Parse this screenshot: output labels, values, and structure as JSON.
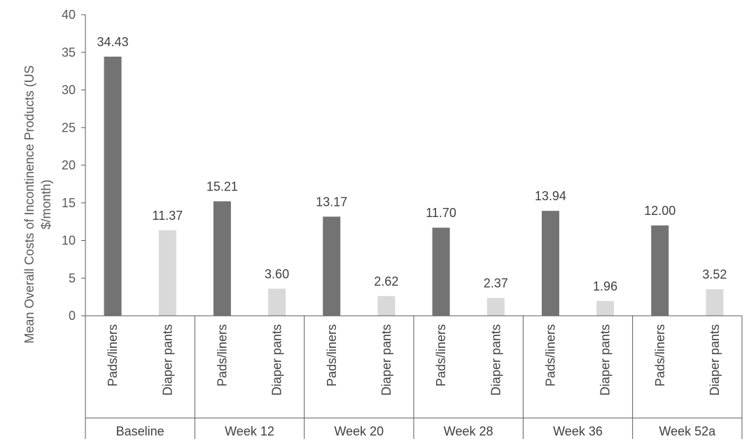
{
  "chart_data": {
    "type": "bar",
    "title": "",
    "ylabel": "Mean Overall Costs of Incontinence Products (US $/month)",
    "ylabel_lines": [
      "Mean Overall Costs of Incontinence Products (US",
      "$/month)"
    ],
    "ylim": [
      0,
      40
    ],
    "yticks": [
      0,
      5,
      10,
      15,
      20,
      25,
      30,
      35,
      40
    ],
    "grid": false,
    "legend": "none",
    "groups": [
      "Baseline",
      "Week 12",
      "Week 20",
      "Week 28",
      "Week 36",
      "Week 52a"
    ],
    "subcategories": [
      "Pads/liners",
      "Diaper pants"
    ],
    "series": [
      {
        "subcategory": "Pads/liners",
        "color": "#737373",
        "values": [
          34.43,
          15.21,
          13.17,
          11.7,
          13.94,
          12.0
        ]
      },
      {
        "subcategory": "Diaper pants",
        "color": "#d9d9d9",
        "values": [
          11.37,
          3.6,
          2.62,
          2.37,
          1.96,
          3.52
        ]
      }
    ],
    "data_labels": [
      [
        "34.43",
        "11.37"
      ],
      [
        "15.21",
        "3.60"
      ],
      [
        "13.17",
        "2.62"
      ],
      [
        "11.70",
        "2.37"
      ],
      [
        "13.94",
        "1.96"
      ],
      [
        "12.00",
        "3.52"
      ]
    ]
  },
  "colors": {
    "axis": "#595959",
    "text": "#404040"
  }
}
